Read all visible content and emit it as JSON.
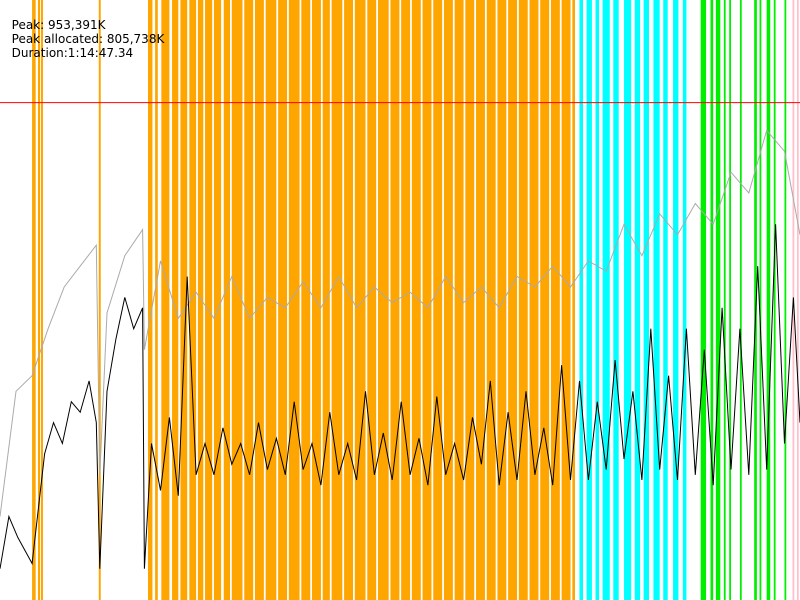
{
  "header": {
    "peak": "Peak: 953,391K",
    "peak_allocated": "Peak allocated: 805,738K",
    "duration": "Duration:1:14:47.34"
  },
  "colors": {
    "background": "#ffffff",
    "phase_orange": "#ffa500",
    "phase_cyan": "#00ffff",
    "phase_green": "#00ee00",
    "phase_pink": "#ffc0cb",
    "peak_line": "#ff0000",
    "total_series": "#aaaaaa",
    "used_series": "#000000"
  },
  "chart_data": {
    "type": "line",
    "x_unit": "seconds",
    "x_range": [
      0,
      4487
    ],
    "y_unit": "K",
    "y_range": [
      0,
      1150000
    ],
    "peak_marker_K": 953391,
    "peak_allocated_K": 805738,
    "phases": [
      {
        "color": "orange",
        "spans": [
          [
            180,
            200
          ],
          [
            213,
            225
          ],
          [
            230,
            241
          ],
          [
            554,
            565
          ],
          [
            830,
            855
          ],
          [
            870,
            885
          ],
          [
            905,
            950
          ],
          [
            965,
            1000
          ],
          [
            1012,
            1050
          ],
          [
            1062,
            1100
          ],
          [
            1110,
            1140
          ],
          [
            1150,
            1190
          ],
          [
            1200,
            1240
          ],
          [
            1255,
            1290
          ],
          [
            1300,
            1360
          ],
          [
            1370,
            1420
          ],
          [
            1430,
            1480
          ],
          [
            1490,
            1550
          ],
          [
            1560,
            1610
          ],
          [
            1620,
            1680
          ],
          [
            1690,
            1740
          ],
          [
            1750,
            1800
          ],
          [
            1810,
            1850
          ],
          [
            1860,
            1920
          ],
          [
            1930,
            1980
          ],
          [
            1990,
            2050
          ],
          [
            2060,
            2110
          ],
          [
            2120,
            2180
          ],
          [
            2190,
            2240
          ],
          [
            2250,
            2300
          ],
          [
            2310,
            2360
          ],
          [
            2370,
            2420
          ],
          [
            2430,
            2480
          ],
          [
            2490,
            2540
          ],
          [
            2550,
            2600
          ],
          [
            2610,
            2660
          ],
          [
            2670,
            2720
          ],
          [
            2730,
            2780
          ],
          [
            2790,
            2840
          ],
          [
            2850,
            2900
          ],
          [
            2910,
            2960
          ],
          [
            2970,
            3020
          ],
          [
            3030,
            3080
          ],
          [
            3090,
            3140
          ],
          [
            3150,
            3200
          ],
          [
            3210,
            3225
          ]
        ]
      },
      {
        "color": "cyan",
        "spans": [
          [
            3250,
            3270
          ],
          [
            3290,
            3320
          ],
          [
            3340,
            3360
          ],
          [
            3380,
            3420
          ],
          [
            3440,
            3470
          ],
          [
            3500,
            3540
          ],
          [
            3560,
            3590
          ],
          [
            3610,
            3640
          ],
          [
            3665,
            3700
          ],
          [
            3720,
            3745
          ],
          [
            3775,
            3805
          ],
          [
            3830,
            3850
          ]
        ]
      },
      {
        "color": "green",
        "spans": [
          [
            3930,
            3960
          ],
          [
            3985,
            4000
          ],
          [
            4015,
            4040
          ],
          [
            4060,
            4070
          ],
          [
            4090,
            4100
          ],
          [
            4150,
            4160
          ],
          [
            4230,
            4245
          ],
          [
            4260,
            4270
          ],
          [
            4300,
            4320
          ],
          [
            4340,
            4350
          ],
          [
            4400,
            4410
          ]
        ]
      },
      {
        "color": "pink",
        "spans": [
          [
            4445,
            4455
          ],
          [
            4470,
            4480
          ]
        ]
      }
    ],
    "series": [
      {
        "name": "",
        "color": "gray",
        "x": [
          0,
          90,
          180,
          270,
          360,
          450,
          540,
          560,
          600,
          700,
          800,
          810,
          900,
          1000,
          1100,
          1200,
          1300,
          1400,
          1500,
          1600,
          1700,
          1800,
          1900,
          2000,
          2100,
          2200,
          2300,
          2400,
          2500,
          2600,
          2700,
          2800,
          2900,
          3000,
          3100,
          3200,
          3300,
          3400,
          3500,
          3600,
          3700,
          3800,
          3900,
          4000,
          4100,
          4200,
          4300,
          4400,
          4487
        ],
        "values": [
          160000,
          400000,
          430000,
          520000,
          600000,
          640000,
          680000,
          240000,
          550000,
          660000,
          710000,
          480000,
          650000,
          540000,
          590000,
          540000,
          620000,
          540000,
          580000,
          560000,
          610000,
          560000,
          620000,
          560000,
          600000,
          570000,
          590000,
          560000,
          620000,
          570000,
          600000,
          560000,
          620000,
          600000,
          640000,
          600000,
          650000,
          630000,
          720000,
          660000,
          740000,
          700000,
          760000,
          720000,
          820000,
          780000,
          900000,
          860000,
          700000
        ]
      },
      {
        "name": "",
        "color": "black",
        "x": [
          0,
          50,
          100,
          180,
          250,
          300,
          350,
          400,
          450,
          500,
          540,
          560,
          600,
          650,
          700,
          750,
          800,
          810,
          850,
          900,
          950,
          1000,
          1050,
          1100,
          1150,
          1200,
          1250,
          1300,
          1350,
          1400,
          1450,
          1500,
          1550,
          1600,
          1650,
          1700,
          1750,
          1800,
          1850,
          1900,
          1950,
          2000,
          2050,
          2100,
          2150,
          2200,
          2250,
          2300,
          2350,
          2400,
          2450,
          2500,
          2550,
          2600,
          2650,
          2700,
          2750,
          2800,
          2850,
          2900,
          2950,
          3000,
          3050,
          3100,
          3150,
          3200,
          3250,
          3300,
          3350,
          3400,
          3450,
          3500,
          3550,
          3600,
          3650,
          3700,
          3750,
          3800,
          3850,
          3900,
          3950,
          4000,
          4050,
          4100,
          4150,
          4200,
          4250,
          4300,
          4350,
          4400,
          4450,
          4487
        ],
        "values": [
          60000,
          160000,
          120000,
          70000,
          280000,
          340000,
          300000,
          380000,
          360000,
          420000,
          340000,
          60000,
          400000,
          500000,
          580000,
          520000,
          560000,
          60000,
          300000,
          210000,
          350000,
          200000,
          620000,
          240000,
          300000,
          240000,
          330000,
          260000,
          300000,
          240000,
          340000,
          250000,
          310000,
          240000,
          380000,
          250000,
          300000,
          220000,
          360000,
          240000,
          300000,
          230000,
          400000,
          240000,
          320000,
          230000,
          380000,
          240000,
          310000,
          220000,
          390000,
          240000,
          300000,
          230000,
          350000,
          260000,
          420000,
          220000,
          360000,
          230000,
          400000,
          240000,
          330000,
          220000,
          450000,
          230000,
          420000,
          230000,
          380000,
          250000,
          460000,
          270000,
          400000,
          230000,
          520000,
          250000,
          430000,
          230000,
          520000,
          240000,
          480000,
          220000,
          560000,
          250000,
          520000,
          240000,
          640000,
          250000,
          720000,
          300000,
          580000,
          340000
        ]
      }
    ]
  }
}
